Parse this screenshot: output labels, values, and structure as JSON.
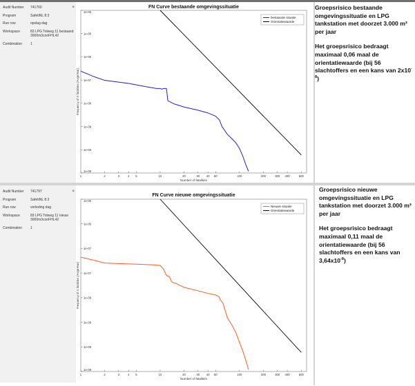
{
  "panels": [
    {
      "meta": [
        {
          "label": "Audit Number",
          "value": "741760"
        },
        {
          "label": "Program",
          "value": "SafetiNL 8.3"
        },
        {
          "label": "Run row",
          "value": "opslag dag"
        },
        {
          "label": "Workspace",
          "value": "83 LPG Tolweg 11 bestaand 3000m3conFHL42"
        },
        {
          "label": "Combination",
          "value": "1"
        }
      ],
      "close_glyph": "×",
      "note_title": "Groepsrisico bestaande omgevingssituatie en LPG tankstation met doorzet 3.000 m³ per jaar",
      "note_body": "Het groepsrisico bedraagt maximaal 0,06 maal de orientatiewaarde (bij 56 slachtoffers en een kans van 2x10",
      "note_exp": "-8",
      "note_end": ")"
    },
    {
      "meta": [
        {
          "label": "Audit Number",
          "value": "741797"
        },
        {
          "label": "Program",
          "value": "SafetiNL 8.3"
        },
        {
          "label": "Run row",
          "value": "verleding dag"
        },
        {
          "label": "Workspace",
          "value": "83 LPG Tolweg 11 nieuw 3000m3conFHL42"
        },
        {
          "label": "Combination",
          "value": "1"
        }
      ],
      "close_glyph": "×",
      "note_title": "Groepsrisico nieuwe omgevingssituatie en LPG tankstation met doorzet 3.000 m³ per jaar",
      "note_body": "Het groepsrisico bedraagt maximaal 0,11 maal de orientatiewaarde (bij 56 slachtoffers en een kans van 3,64x10",
      "note_exp": "-8",
      "note_end": ")"
    }
  ],
  "chart_data": [
    {
      "type": "line",
      "title": "FN Curve bestaande omgevingssituatie",
      "xlabel": "Number of fatalities",
      "ylabel": "Frequency of N fatalities (/AvgeYear)",
      "xscale": "log",
      "yscale": "log",
      "xlim": [
        1,
        700
      ],
      "ylim": [
        1e-09,
        1e-05
      ],
      "xticks": [
        "1",
        "2",
        "3",
        "4",
        "5",
        "10",
        "20",
        "30",
        "40",
        "50",
        "100",
        "200",
        "300",
        "400",
        "600"
      ],
      "xtick_values": [
        1,
        2,
        3,
        4,
        5,
        10,
        20,
        30,
        40,
        50,
        100,
        200,
        300,
        400,
        600
      ],
      "yticks": [
        "1e-05",
        "1e-06",
        "1e-06",
        "1e-07",
        "1e-08",
        "1e-08",
        "1e-09",
        "1e-09"
      ],
      "grid": false,
      "legend_position": "top-right",
      "series": [
        {
          "name": "bestaande situatie",
          "color": "#1f1fcc",
          "points": [
            [
              1,
              3.2e-07
            ],
            [
              1.5,
              2.3e-07
            ],
            [
              2,
              1.9e-07
            ],
            [
              4,
              1.6e-07
            ],
            [
              7,
              1.3e-07
            ],
            [
              9,
              1.2e-07
            ],
            [
              10,
              1.2e-07
            ],
            [
              10.5,
              1.15e-07
            ],
            [
              11,
              1.2e-07
            ],
            [
              12,
              1.2e-07
            ],
            [
              12.5,
              6e-08
            ],
            [
              15,
              5e-08
            ],
            [
              20,
              4.2e-08
            ],
            [
              30,
              3.5e-08
            ],
            [
              40,
              3e-08
            ],
            [
              50,
              2.5e-08
            ],
            [
              56,
              2e-08
            ],
            [
              60,
              1.4e-08
            ],
            [
              70,
              9e-09
            ],
            [
              80,
              7e-09
            ],
            [
              90,
              5.5e-09
            ],
            [
              100,
              4e-09
            ],
            [
              110,
              2.6e-09
            ],
            [
              120,
              1.6e-09
            ],
            [
              130,
              1.1e-09
            ]
          ]
        },
        {
          "name": "Orientatiewaarde",
          "color": "#000000",
          "points": [
            [
              10,
              1e-05
            ],
            [
              600,
              2.78e-09
            ]
          ]
        }
      ]
    },
    {
      "type": "line",
      "title": "FN Curve nieuwe omgevingssituatie",
      "xlabel": "Number of fatalities",
      "ylabel": "Frequency of N fatalities (/AvgeYear)",
      "xscale": "log",
      "yscale": "log",
      "xlim": [
        1,
        700
      ],
      "ylim": [
        1e-09,
        1e-05
      ],
      "xticks": [
        "1",
        "2",
        "3",
        "4",
        "5",
        "10",
        "20",
        "30",
        "40",
        "50",
        "100",
        "200",
        "300",
        "400",
        "600"
      ],
      "xtick_values": [
        1,
        2,
        3,
        4,
        5,
        10,
        20,
        30,
        40,
        50,
        100,
        200,
        300,
        400,
        600
      ],
      "yticks": [
        "1e-05",
        "1e-06",
        "1e-07",
        "1e-07",
        "1e-08",
        "1e-08",
        "1e-09",
        "1e-09"
      ],
      "grid": false,
      "legend_position": "top-right",
      "series": [
        {
          "name": "Nieuwe situatie",
          "color": "#ff5a1a",
          "points": [
            [
              1,
              4.5e-07
            ],
            [
              1.5,
              3.8e-07
            ],
            [
              2,
              3.3e-07
            ],
            [
              3,
              3.2e-07
            ],
            [
              5,
              3.1e-07
            ],
            [
              8,
              3e-07
            ],
            [
              10,
              2.9e-07
            ],
            [
              11,
              2.4e-07
            ],
            [
              12,
              1.7e-07
            ],
            [
              13,
              1.6e-07
            ],
            [
              14,
              1.2e-07
            ],
            [
              16,
              1.1e-07
            ],
            [
              20,
              9e-08
            ],
            [
              30,
              7.5e-08
            ],
            [
              40,
              6.5e-08
            ],
            [
              50,
              6e-08
            ],
            [
              55,
              5.5e-08
            ],
            [
              58,
              4.5e-08
            ],
            [
              62,
              3.8e-08
            ],
            [
              70,
              1.8e-08
            ],
            [
              80,
              1.2e-08
            ],
            [
              90,
              8e-09
            ],
            [
              100,
              4.7e-09
            ],
            [
              110,
              3e-09
            ],
            [
              120,
              1.8e-09
            ],
            [
              130,
              1.1e-09
            ]
          ]
        },
        {
          "name": "Orientatiewaarde",
          "color": "#000000",
          "points": [
            [
              10,
              1e-05
            ],
            [
              600,
              2.78e-09
            ]
          ]
        }
      ]
    }
  ]
}
